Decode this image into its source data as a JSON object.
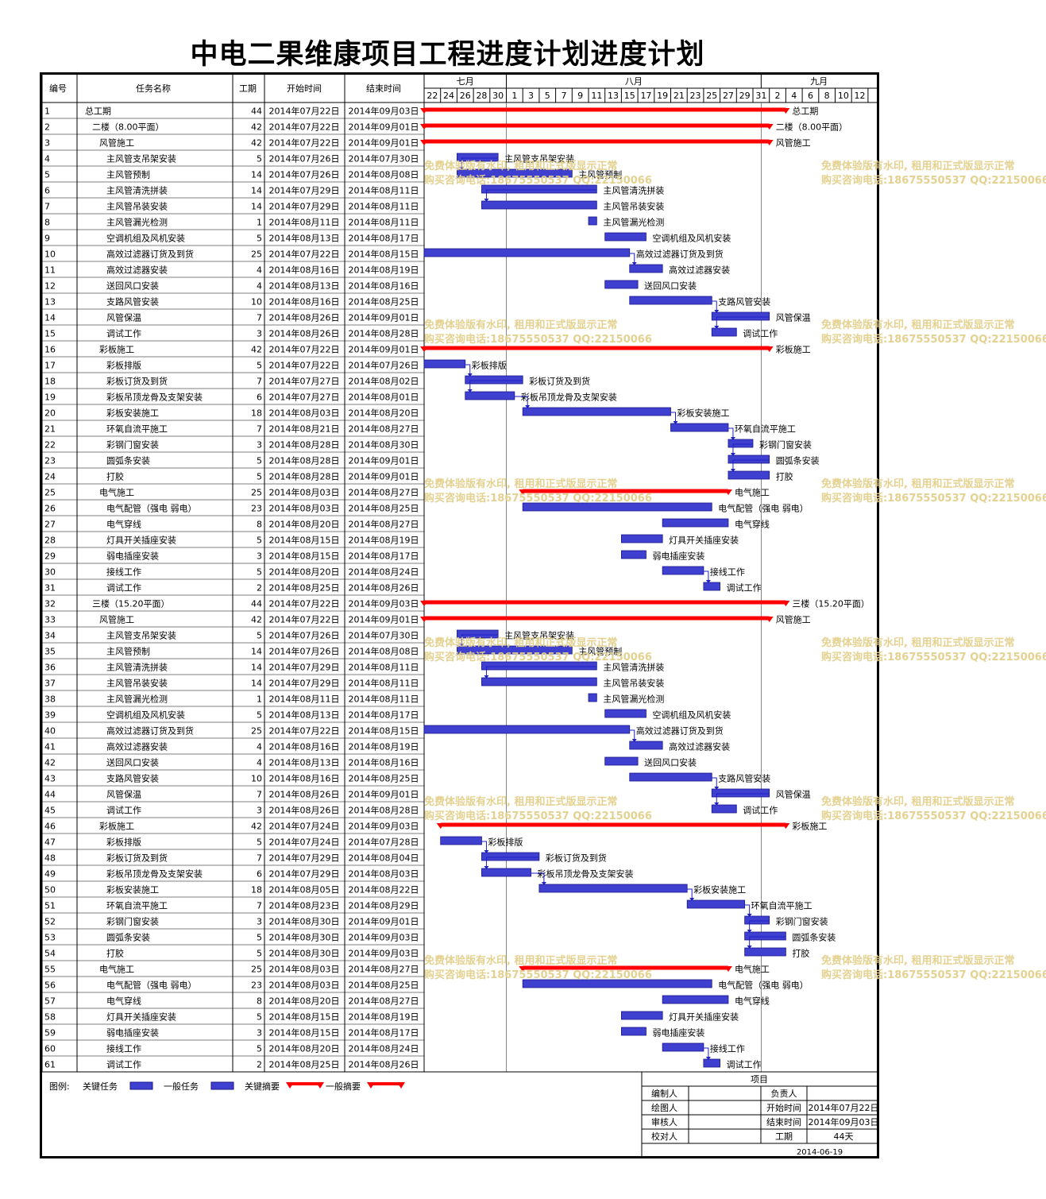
{
  "title": "中电二果维康项目工程进度计划进度计划",
  "headers": {
    "id": "编号",
    "name": "任务名称",
    "dur": "工期",
    "start": "开始时间",
    "end": "结束时间"
  },
  "months": [
    {
      "label": "七月",
      "day": 22
    },
    {
      "label": "八月",
      "day": 32
    },
    {
      "label": "九月",
      "day": 63
    }
  ],
  "day_ticks": [
    "22",
    "24",
    "26",
    "28",
    "30",
    "1",
    "3",
    "5",
    "7",
    "9",
    "11",
    "13",
    "15",
    "17",
    "19",
    "21",
    "23",
    "25",
    "27",
    "29",
    "31",
    "2",
    "4",
    "6",
    "8",
    "10",
    "12"
  ],
  "legend": {
    "label": "图例:",
    "critical_task": "关键任务",
    "normal_task": "一般任务",
    "critical_summary": "关键摘要",
    "normal_summary": "一般摘要"
  },
  "info": {
    "heading": "项目",
    "rows": [
      {
        "k1": "编制人",
        "v1": "",
        "k2": "负责人",
        "v2": ""
      },
      {
        "k1": "绘图人",
        "v1": "",
        "k2": "开始时间",
        "v2": "2014年07月22日"
      },
      {
        "k1": "审核人",
        "v1": "",
        "k2": "结束时间",
        "v2": "2014年09月03日"
      },
      {
        "k1": "校对人",
        "v1": "",
        "k2": "工期",
        "v2": "44天"
      }
    ],
    "date": "2014-06-19"
  },
  "watermark": {
    "line1": "免费体验版有水印, 租用和正式版显示正常",
    "line2": "购买咨询电话:18675550537 QQ:22150066"
  },
  "colors": {
    "summary": "#ff0000",
    "task_fill": "#3f3fd0",
    "task_border": "#1a1a8a",
    "link": "#1f1fc8"
  },
  "chart_data": {
    "type": "gantt",
    "tasks": [
      {
        "id": "1",
        "name": "总工期",
        "dur": 44,
        "start": "2014年07月22日",
        "end": "2014年09月03日",
        "level": 0,
        "summary": true
      },
      {
        "id": "2",
        "name": "二楼（8.00平面）",
        "dur": 42,
        "start": "2014年07月22日",
        "end": "2014年09月01日",
        "level": 1,
        "summary": true
      },
      {
        "id": "3",
        "name": "风管施工",
        "dur": 42,
        "start": "2014年07月22日",
        "end": "2014年09月01日",
        "level": 2,
        "summary": true
      },
      {
        "id": "4",
        "name": "主风管支吊架安装",
        "dur": 5,
        "start": "2014年07月26日",
        "end": "2014年07月30日",
        "level": 3
      },
      {
        "id": "5",
        "name": "主风管预制",
        "dur": 14,
        "start": "2014年07月26日",
        "end": "2014年08月08日",
        "level": 3
      },
      {
        "id": "6",
        "name": "主风管清洗拼装",
        "dur": 14,
        "start": "2014年07月29日",
        "end": "2014年08月11日",
        "level": 3
      },
      {
        "id": "7",
        "name": "主风管吊装安装",
        "dur": 14,
        "start": "2014年07月29日",
        "end": "2014年08月11日",
        "level": 3
      },
      {
        "id": "8",
        "name": "主风管漏光检测",
        "dur": 1,
        "start": "2014年08月11日",
        "end": "2014年08月11日",
        "level": 3
      },
      {
        "id": "9",
        "name": "空调机组及风机安装",
        "dur": 5,
        "start": "2014年08月13日",
        "end": "2014年08月17日",
        "level": 3
      },
      {
        "id": "10",
        "name": "高效过滤器订货及到货",
        "dur": 25,
        "start": "2014年07月22日",
        "end": "2014年08月15日",
        "level": 3
      },
      {
        "id": "11",
        "name": "高效过滤器安装",
        "dur": 4,
        "start": "2014年08月16日",
        "end": "2014年08月19日",
        "level": 3
      },
      {
        "id": "12",
        "name": "送回风口安装",
        "dur": 4,
        "start": "2014年08月13日",
        "end": "2014年08月16日",
        "level": 3
      },
      {
        "id": "13",
        "name": "支路风管安装",
        "dur": 10,
        "start": "2014年08月16日",
        "end": "2014年08月25日",
        "level": 3
      },
      {
        "id": "14",
        "name": "风管保温",
        "dur": 7,
        "start": "2014年08月26日",
        "end": "2014年09月01日",
        "level": 3
      },
      {
        "id": "15",
        "name": "调试工作",
        "dur": 3,
        "start": "2014年08月26日",
        "end": "2014年08月28日",
        "level": 3
      },
      {
        "id": "16",
        "name": "彩板施工",
        "dur": 42,
        "start": "2014年07月22日",
        "end": "2014年09月01日",
        "level": 2,
        "summary": true
      },
      {
        "id": "17",
        "name": "彩板排版",
        "dur": 5,
        "start": "2014年07月22日",
        "end": "2014年07月26日",
        "level": 3
      },
      {
        "id": "18",
        "name": "彩板订货及到货",
        "dur": 7,
        "start": "2014年07月27日",
        "end": "2014年08月02日",
        "level": 3
      },
      {
        "id": "19",
        "name": "彩板吊顶龙骨及支架安装",
        "dur": 6,
        "start": "2014年07月27日",
        "end": "2014年08月01日",
        "level": 3
      },
      {
        "id": "20",
        "name": "彩板安装施工",
        "dur": 18,
        "start": "2014年08月03日",
        "end": "2014年08月20日",
        "level": 3
      },
      {
        "id": "21",
        "name": "环氧自流平施工",
        "dur": 7,
        "start": "2014年08月21日",
        "end": "2014年08月27日",
        "level": 3
      },
      {
        "id": "22",
        "name": "彩钢门窗安装",
        "dur": 3,
        "start": "2014年08月28日",
        "end": "2014年08月30日",
        "level": 3
      },
      {
        "id": "23",
        "name": "圆弧条安装",
        "dur": 5,
        "start": "2014年08月28日",
        "end": "2014年09月01日",
        "level": 3
      },
      {
        "id": "24",
        "name": "打胶",
        "dur": 5,
        "start": "2014年08月28日",
        "end": "2014年09月01日",
        "level": 3
      },
      {
        "id": "25",
        "name": "电气施工",
        "dur": 25,
        "start": "2014年08月03日",
        "end": "2014年08月27日",
        "level": 2,
        "summary": true
      },
      {
        "id": "26",
        "name": "电气配管（强电 弱电）",
        "dur": 23,
        "start": "2014年08月03日",
        "end": "2014年08月25日",
        "level": 3
      },
      {
        "id": "27",
        "name": "电气穿线",
        "dur": 8,
        "start": "2014年08月20日",
        "end": "2014年08月27日",
        "level": 3
      },
      {
        "id": "28",
        "name": "灯具开关插座安装",
        "dur": 5,
        "start": "2014年08月15日",
        "end": "2014年08月19日",
        "level": 3
      },
      {
        "id": "29",
        "name": "弱电插座安装",
        "dur": 3,
        "start": "2014年08月15日",
        "end": "2014年08月17日",
        "level": 3
      },
      {
        "id": "30",
        "name": "接线工作",
        "dur": 5,
        "start": "2014年08月20日",
        "end": "2014年08月24日",
        "level": 3
      },
      {
        "id": "31",
        "name": "调试工作",
        "dur": 2,
        "start": "2014年08月25日",
        "end": "2014年08月26日",
        "level": 3
      },
      {
        "id": "32",
        "name": "三楼（15.20平面）",
        "dur": 44,
        "start": "2014年07月22日",
        "end": "2014年09月03日",
        "level": 1,
        "summary": true
      },
      {
        "id": "33",
        "name": "风管施工",
        "dur": 42,
        "start": "2014年07月22日",
        "end": "2014年09月01日",
        "level": 2,
        "summary": true
      },
      {
        "id": "34",
        "name": "主风管支吊架安装",
        "dur": 5,
        "start": "2014年07月26日",
        "end": "2014年07月30日",
        "level": 3
      },
      {
        "id": "35",
        "name": "主风管预制",
        "dur": 14,
        "start": "2014年07月26日",
        "end": "2014年08月08日",
        "level": 3
      },
      {
        "id": "36",
        "name": "主风管清洗拼装",
        "dur": 14,
        "start": "2014年07月29日",
        "end": "2014年08月11日",
        "level": 3
      },
      {
        "id": "37",
        "name": "主风管吊装安装",
        "dur": 14,
        "start": "2014年07月29日",
        "end": "2014年08月11日",
        "level": 3
      },
      {
        "id": "38",
        "name": "主风管漏光检测",
        "dur": 1,
        "start": "2014年08月11日",
        "end": "2014年08月11日",
        "level": 3
      },
      {
        "id": "39",
        "name": "空调机组及风机安装",
        "dur": 5,
        "start": "2014年08月13日",
        "end": "2014年08月17日",
        "level": 3
      },
      {
        "id": "40",
        "name": "高效过滤器订货及到货",
        "dur": 25,
        "start": "2014年07月22日",
        "end": "2014年08月15日",
        "level": 3
      },
      {
        "id": "41",
        "name": "高效过滤器安装",
        "dur": 4,
        "start": "2014年08月16日",
        "end": "2014年08月19日",
        "level": 3
      },
      {
        "id": "42",
        "name": "送回风口安装",
        "dur": 4,
        "start": "2014年08月13日",
        "end": "2014年08月16日",
        "level": 3
      },
      {
        "id": "43",
        "name": "支路风管安装",
        "dur": 10,
        "start": "2014年08月16日",
        "end": "2014年08月25日",
        "level": 3
      },
      {
        "id": "44",
        "name": "风管保温",
        "dur": 7,
        "start": "2014年08月26日",
        "end": "2014年09月01日",
        "level": 3
      },
      {
        "id": "45",
        "name": "调试工作",
        "dur": 3,
        "start": "2014年08月26日",
        "end": "2014年08月28日",
        "level": 3
      },
      {
        "id": "46",
        "name": "彩板施工",
        "dur": 42,
        "start": "2014年07月24日",
        "end": "2014年09月03日",
        "level": 2,
        "summary": true
      },
      {
        "id": "47",
        "name": "彩板排版",
        "dur": 5,
        "start": "2014年07月24日",
        "end": "2014年07月28日",
        "level": 3
      },
      {
        "id": "48",
        "name": "彩板订货及到货",
        "dur": 7,
        "start": "2014年07月29日",
        "end": "2014年08月04日",
        "level": 3
      },
      {
        "id": "49",
        "name": "彩板吊顶龙骨及支架安装",
        "dur": 6,
        "start": "2014年07月29日",
        "end": "2014年08月03日",
        "level": 3
      },
      {
        "id": "50",
        "name": "彩板安装施工",
        "dur": 18,
        "start": "2014年08月05日",
        "end": "2014年08月22日",
        "level": 3
      },
      {
        "id": "51",
        "name": "环氧自流平施工",
        "dur": 7,
        "start": "2014年08月23日",
        "end": "2014年08月29日",
        "level": 3
      },
      {
        "id": "52",
        "name": "彩钢门窗安装",
        "dur": 3,
        "start": "2014年08月30日",
        "end": "2014年09月01日",
        "level": 3
      },
      {
        "id": "53",
        "name": "圆弧条安装",
        "dur": 5,
        "start": "2014年08月30日",
        "end": "2014年09月03日",
        "level": 3
      },
      {
        "id": "54",
        "name": "打胶",
        "dur": 5,
        "start": "2014年08月30日",
        "end": "2014年09月03日",
        "level": 3
      },
      {
        "id": "55",
        "name": "电气施工",
        "dur": 25,
        "start": "2014年08月03日",
        "end": "2014年08月27日",
        "level": 2,
        "summary": true
      },
      {
        "id": "56",
        "name": "电气配管（强电 弱电）",
        "dur": 23,
        "start": "2014年08月03日",
        "end": "2014年08月25日",
        "level": 3
      },
      {
        "id": "57",
        "name": "电气穿线",
        "dur": 8,
        "start": "2014年08月20日",
        "end": "2014年08月27日",
        "level": 3
      },
      {
        "id": "58",
        "name": "灯具开关插座安装",
        "dur": 5,
        "start": "2014年08月15日",
        "end": "2014年08月19日",
        "level": 3
      },
      {
        "id": "59",
        "name": "弱电插座安装",
        "dur": 3,
        "start": "2014年08月15日",
        "end": "2014年08月17日",
        "level": 3
      },
      {
        "id": "60",
        "name": "接线工作",
        "dur": 5,
        "start": "2014年08月20日",
        "end": "2014年08月24日",
        "level": 3
      },
      {
        "id": "61",
        "name": "调试工作",
        "dur": 2,
        "start": "2014年08月25日",
        "end": "2014年08月26日",
        "level": 3
      }
    ],
    "links": [
      [
        4,
        5
      ],
      [
        6,
        7
      ],
      [
        10,
        11
      ],
      [
        13,
        14
      ],
      [
        14,
        15
      ],
      [
        17,
        18
      ],
      [
        18,
        19
      ],
      [
        19,
        20
      ],
      [
        20,
        21
      ],
      [
        21,
        22
      ],
      [
        22,
        23
      ],
      [
        23,
        24
      ],
      [
        30,
        31
      ],
      [
        34,
        35
      ],
      [
        36,
        37
      ],
      [
        40,
        41
      ],
      [
        43,
        44
      ],
      [
        44,
        45
      ],
      [
        47,
        48
      ],
      [
        48,
        49
      ],
      [
        49,
        50
      ],
      [
        50,
        51
      ],
      [
        51,
        52
      ],
      [
        52,
        53
      ],
      [
        53,
        54
      ],
      [
        60,
        61
      ]
    ]
  }
}
